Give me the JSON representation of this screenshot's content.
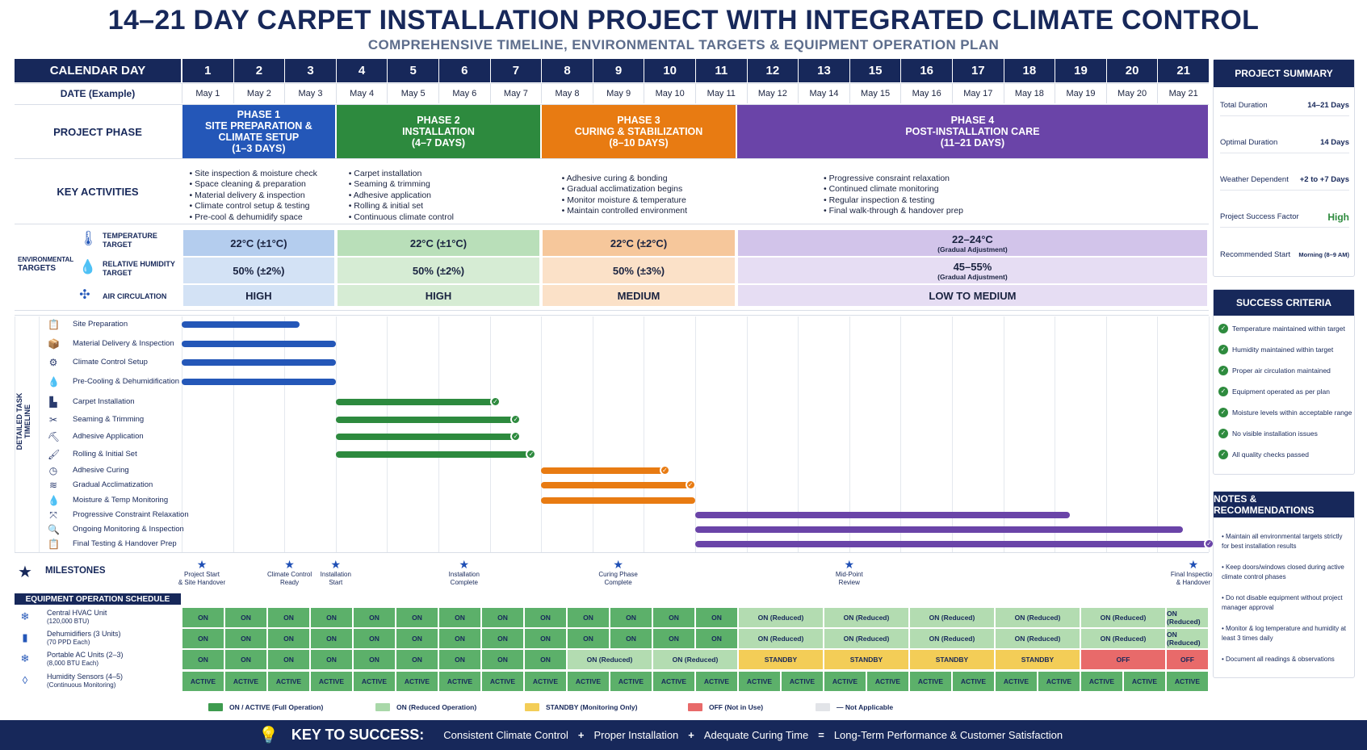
{
  "title": "14–21 DAY CARPET INSTALLATION PROJECT WITH INTEGRATED CLIMATE CONTROL",
  "subtitle": "COMPREHENSIVE TIMELINE, ENVIRONMENTAL TARGETS & EQUIPMENT OPERATION PLAN",
  "header": {
    "calendar_label": "CALENDAR DAY",
    "date_label": "DATE (Example)",
    "days": [
      "1",
      "2",
      "3",
      "4",
      "5",
      "6",
      "7",
      "8",
      "9",
      "10",
      "11",
      "12",
      "13",
      "15",
      "16",
      "17",
      "18",
      "19",
      "20",
      "21"
    ],
    "dates": [
      "May 1",
      "May 2",
      "May 3",
      "May 4",
      "May 5",
      "May 6",
      "May 7",
      "May 8",
      "May 9",
      "May 10",
      "May 11",
      "May 12",
      "May 14",
      "May 15",
      "May 16",
      "May 17",
      "May 18",
      "May 19",
      "May 20",
      "May 21"
    ]
  },
  "phase_label": "PROJECT PHASE",
  "phases": [
    {
      "name": "PHASE 1",
      "desc": "SITE PREPARATION & CLIMATE SETUP",
      "days": "(1–3 DAYS)",
      "color": "#2457b8"
    },
    {
      "name": "PHASE 2",
      "desc": "INSTALLATION",
      "days": "(4–7 DAYS)",
      "color": "#2d8a3e"
    },
    {
      "name": "PHASE 3",
      "desc": "CURING & STABILIZATION",
      "days": "(8–10 DAYS)",
      "color": "#e87b12"
    },
    {
      "name": "PHASE 4",
      "desc": "POST-INSTALLATION CARE",
      "days": "(11–21 DAYS)",
      "color": "#6a44a8"
    }
  ],
  "activities_label": "KEY ACTIVITIES",
  "activities": [
    [
      "Site inspection & moisture check",
      "Space cleaning & preparation",
      "Material delivery & inspection",
      "Climate control setup & testing",
      "Pre-cool & dehumidify space"
    ],
    [
      "Carpet installation",
      "Seaming & trimming",
      "Adhesive application",
      "Rolling & initial set",
      "Continuous climate control"
    ],
    [
      "Adhesive curing & bonding",
      "Gradual acclimatization begins",
      "Monitor moisture & temperature",
      "Maintain controlled environment"
    ],
    [
      "Progressive consraint relaxation",
      "Continued climate monitoring",
      "Regular inspection & testing",
      "Final walk-through & handover prep"
    ]
  ],
  "env": {
    "group_label_1": "ENVIRONMENTAL",
    "group_label_2": "TARGETS",
    "temp_label_1": "TEMPERATURE",
    "temp_label_2": "TARGET",
    "hum_label_1": "RELATIVE HUMIDITY",
    "hum_label_2": "TARGET",
    "air_label": "AIR CIRCULATION",
    "temp": [
      "22°C (±1°C)",
      "22°C (±1°C)",
      "22°C (±2°C)",
      "22–24°C"
    ],
    "temp_note": "(Gradual Adjustment)",
    "hum": [
      "50% (±2%)",
      "50% (±2%)",
      "50% (±3%)",
      "45–55%"
    ],
    "hum_note": "(Gradual Adjustment)",
    "air": [
      "HIGH",
      "HIGH",
      "MEDIUM",
      "LOW TO MEDIUM"
    ]
  },
  "timeline_label": "DETAILED TASK TIMELINE",
  "tasks": [
    {
      "label": "Site Preparation",
      "icon": "clipboard-icon",
      "start": 1,
      "end": 3.3,
      "color": "#2457b8",
      "done": false
    },
    {
      "label": "Material Delivery & Inspection",
      "icon": "box-icon",
      "start": 1,
      "end": 4,
      "color": "#2457b8",
      "done": false
    },
    {
      "label": "Climate Control Setup",
      "icon": "gear-icon",
      "start": 1,
      "end": 4,
      "color": "#2457b8",
      "done": false
    },
    {
      "label": "Pre-Cooling & Dehumidification",
      "icon": "droplets-icon",
      "start": 1,
      "end": 4,
      "color": "#2457b8",
      "done": false
    },
    {
      "label": "Carpet Installation",
      "icon": "carpet-icon",
      "start": 4,
      "end": 7.1,
      "color": "#2d8a3e",
      "done": true
    },
    {
      "label": "Seaming & Trimming",
      "icon": "scissors-icon",
      "start": 4,
      "end": 7.5,
      "color": "#2d8a3e",
      "done": true
    },
    {
      "label": "Adhesive Application",
      "icon": "trowel-icon",
      "start": 4,
      "end": 7.5,
      "color": "#2d8a3e",
      "done": true
    },
    {
      "label": "Rolling & Initial Set",
      "icon": "roller-icon",
      "start": 4,
      "end": 7.8,
      "color": "#2d8a3e",
      "done": true
    },
    {
      "label": "Adhesive Curing",
      "icon": "clock-icon",
      "start": 8,
      "end": 10.4,
      "color": "#e87b12",
      "done": true
    },
    {
      "label": "Gradual Acclimatization",
      "icon": "waves-icon",
      "start": 8,
      "end": 10.9,
      "color": "#e87b12",
      "done": true
    },
    {
      "label": "Moisture & Temp Monitoring",
      "icon": "drop-icon",
      "start": 8,
      "end": 11,
      "color": "#e87b12",
      "done": false
    },
    {
      "label": "Progressive Constraint Relaxation",
      "icon": "expand-icon",
      "start": 11,
      "end": 18.3,
      "color": "#6a44a8",
      "done": false
    },
    {
      "label": "Ongoing Monitoring & Inspection",
      "icon": "magnifier-icon",
      "start": 11,
      "end": 20.5,
      "color": "#6a44a8",
      "done": false
    },
    {
      "label": "Final Testing & Handover Prep",
      "icon": "clipboard-check-icon",
      "start": 11,
      "end": 21,
      "color": "#6a44a8",
      "done": true
    }
  ],
  "milestones_label": "MILESTONES",
  "milestones": [
    {
      "day": 1,
      "l1": "Project Start",
      "l2": "& Site Handover"
    },
    {
      "day": 3.1,
      "l1": "Climate Control",
      "l2": "Ready"
    },
    {
      "day": 4,
      "l1": "Installation",
      "l2": "Start"
    },
    {
      "day": 6.5,
      "l1": "Installation",
      "l2": "Complete"
    },
    {
      "day": 9.5,
      "l1": "Curing Phase",
      "l2": "Complete"
    },
    {
      "day": 14,
      "l1": "Mid-Point",
      "l2": "Review"
    },
    {
      "day": 20.7,
      "l1": "Final Inspection",
      "l2": "& Handover"
    }
  ],
  "equipment_label": "EQUIPMENT OPERATION SCHEDULE",
  "equipment": [
    {
      "name": "Central HVAC Unit",
      "sub": "(120,000 BTU)",
      "icon": "snowflake-icon",
      "cells": [
        [
          "ON",
          13,
          "on"
        ],
        [
          "ON (Reduced)",
          2,
          "red"
        ],
        [
          "ON (Reduced)",
          2,
          "red"
        ],
        [
          "ON (Reduced)",
          2,
          "red"
        ],
        [
          "ON (Reduced)",
          2,
          "red"
        ],
        [
          "ON (Reduced)",
          2,
          "red"
        ],
        [
          "ON (Reduced)",
          1,
          "red"
        ]
      ]
    },
    {
      "name": "Dehumidifiers (3 Units)",
      "sub": "(70 PPD Each)",
      "icon": "dehumidifier-icon",
      "cells": [
        [
          "ON",
          13,
          "on"
        ],
        [
          "ON (Reduced)",
          2,
          "red"
        ],
        [
          "ON (Reduced)",
          2,
          "red"
        ],
        [
          "ON (Reduced)",
          2,
          "red"
        ],
        [
          "ON (Reduced)",
          2,
          "red"
        ],
        [
          "ON (Reduced)",
          2,
          "red"
        ],
        [
          "ON (Reduced)",
          1,
          "red"
        ]
      ]
    },
    {
      "name": "Portable AC Units (2–3)",
      "sub": "(8,000 BTU Each)",
      "icon": "ac-icon",
      "cells": [
        [
          "ON",
          9,
          "on"
        ],
        [
          "ON (Reduced)",
          2,
          "red"
        ],
        [
          "ON (Reduced)",
          2,
          "red"
        ],
        [
          "STANDBY",
          2,
          "sb"
        ],
        [
          "STANDBY",
          2,
          "sb"
        ],
        [
          "STANDBY",
          2,
          "sb"
        ],
        [
          "STANDBY",
          2,
          "sb"
        ],
        [
          "OFF",
          2,
          "off"
        ],
        [
          "OFF",
          1,
          "off"
        ]
      ]
    },
    {
      "name": "Humidity Sensors (4–5)",
      "sub": "(Continuous Monitoring)",
      "icon": "sensor-icon",
      "cells": [
        [
          "ACTIVE",
          24,
          "on"
        ]
      ]
    }
  ],
  "legend": [
    {
      "label": "ON / ACTIVE (Full Operation)",
      "color": "#3e9b4f"
    },
    {
      "label": "ON (Reduced Operation)",
      "color": "#a9d8a9"
    },
    {
      "label": "STANDBY (Monitoring Only)",
      "color": "#f3cd57"
    },
    {
      "label": "OFF (Not in Use)",
      "color": "#e86a6a"
    },
    {
      "label": "— Not Applicable",
      "color": "#e2e4e8"
    }
  ],
  "summary": {
    "title": "PROJECT SUMMARY",
    "rows": [
      {
        "k": "Total Duration",
        "v": "14–21 Days"
      },
      {
        "k": "Optimal Duration",
        "v": "14 Days"
      },
      {
        "k": "Weather Dependent",
        "v": "+2 to +7 Days"
      },
      {
        "k": "Project Success Factor",
        "v": "High"
      },
      {
        "k": "Recommended Start",
        "v": "Morning (8–9 AM)"
      }
    ]
  },
  "criteria": {
    "title": "SUCCESS CRITERIA",
    "items": [
      "Temperature maintained within target",
      "Humidity maintained within target",
      "Proper air circulation maintained",
      "Equipment operated as per plan",
      "Moisture levels within acceptable range",
      "No visible installation issues",
      "All quality checks passed"
    ]
  },
  "notes": {
    "title": "NOTES & RECOMMENDATIONS",
    "items": [
      "Maintain all environmental targets strictly for best installation results",
      "Keep doors/windows closed during active climate control phases",
      "Do not disable equipment without project manager approval",
      "Monitor & log temperature and humidity at least 3 times daily",
      "Document all readings & observations"
    ]
  },
  "footer": {
    "key": "KEY TO SUCCESS:",
    "items": [
      "Consistent Climate Control",
      "+",
      "Proper Installation",
      "+",
      "Adequate Curing Time",
      "=",
      "Long-Term Performance & Customer Satisfaction"
    ]
  }
}
